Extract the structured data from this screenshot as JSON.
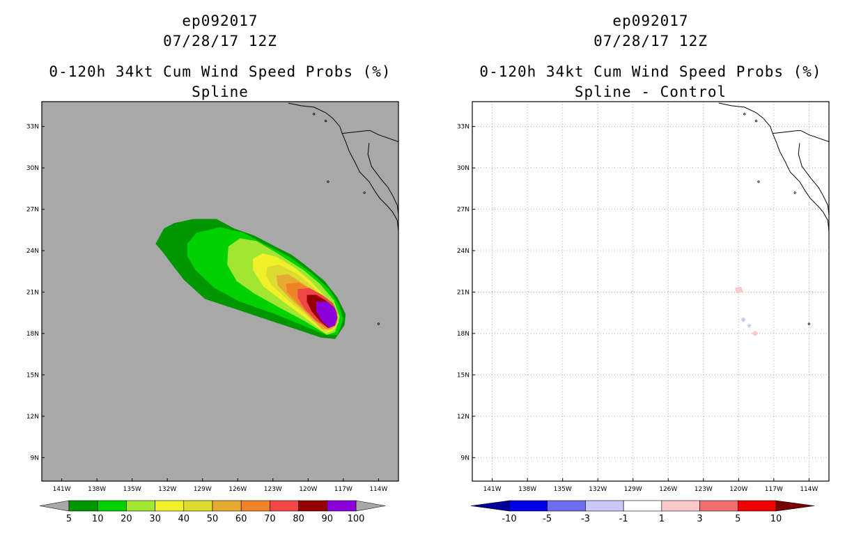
{
  "chart_data": [
    {
      "type": "heatmap",
      "panel": "left",
      "title_lines": [
        "ep092017",
        "07/28/17 12Z",
        "0-120h 34kt Cum Wind Speed Probs (%)",
        "Spline"
      ],
      "xlabel": "",
      "ylabel": "",
      "x_ticks": [
        "141W",
        "138W",
        "135W",
        "132W",
        "129W",
        "126W",
        "123W",
        "120W",
        "117W",
        "114W"
      ],
      "y_ticks": [
        "33N",
        "30N",
        "27N",
        "24N",
        "21N",
        "18N",
        "15N",
        "12N",
        "9N"
      ],
      "xlim": [
        -142.7,
        -112.3
      ],
      "ylim": [
        7.3,
        34.8
      ],
      "grid": false,
      "background": "#a8a8a8",
      "colorbar": {
        "labels": [
          "5",
          "10",
          "20",
          "30",
          "40",
          "50",
          "60",
          "70",
          "80",
          "90",
          "100"
        ],
        "colors": [
          "#009600",
          "#00d200",
          "#a0e632",
          "#f0f028",
          "#dcdc30",
          "#e6aa32",
          "#f08228",
          "#f04646",
          "#960000",
          "#8c00dc"
        ],
        "end_color": "#a8a8a8"
      },
      "contours": [
        {
          "level": 5,
          "color": "#009600",
          "polygon": [
            [
              -133.0,
              24.5
            ],
            [
              -132.3,
              25.6
            ],
            [
              -131.4,
              26.0
            ],
            [
              -129.8,
              26.3
            ],
            [
              -127.8,
              26.3
            ],
            [
              -126.3,
              25.6
            ],
            [
              -124.6,
              25.1
            ],
            [
              -122.8,
              24.3
            ],
            [
              -121.4,
              23.7
            ],
            [
              -120.3,
              23.0
            ],
            [
              -118.6,
              21.8
            ],
            [
              -117.5,
              20.6
            ],
            [
              -116.8,
              19.4
            ],
            [
              -116.9,
              18.6
            ],
            [
              -117.7,
              17.6
            ],
            [
              -118.9,
              17.7
            ],
            [
              -121.0,
              18.3
            ],
            [
              -123.5,
              19.0
            ],
            [
              -126.3,
              19.8
            ],
            [
              -128.8,
              20.5
            ],
            [
              -130.6,
              21.9
            ],
            [
              -131.6,
              23.0
            ],
            [
              -132.4,
              23.9
            ]
          ]
        },
        {
          "level": 10,
          "color": "#00d200",
          "polygon": [
            [
              -130.3,
              24.5
            ],
            [
              -129.5,
              25.3
            ],
            [
              -127.5,
              25.7
            ],
            [
              -125.5,
              25.3
            ],
            [
              -123.8,
              24.5
            ],
            [
              -121.5,
              23.5
            ],
            [
              -119.6,
              22.3
            ],
            [
              -118.2,
              21.2
            ],
            [
              -117.4,
              20.1
            ],
            [
              -117.0,
              19.0
            ],
            [
              -117.5,
              17.9
            ],
            [
              -118.5,
              17.9
            ],
            [
              -120.5,
              18.6
            ],
            [
              -122.8,
              19.4
            ],
            [
              -125.8,
              20.3
            ],
            [
              -128.0,
              21.3
            ],
            [
              -129.6,
              22.6
            ],
            [
              -130.3,
              23.6
            ]
          ]
        },
        {
          "level": 20,
          "color": "#a0e632",
          "polygon": [
            [
              -126.8,
              24.3
            ],
            [
              -125.8,
              24.9
            ],
            [
              -124.4,
              24.7
            ],
            [
              -122.6,
              23.8
            ],
            [
              -120.4,
              22.6
            ],
            [
              -119.0,
              21.6
            ],
            [
              -117.8,
              20.4
            ],
            [
              -117.3,
              19.2
            ],
            [
              -117.7,
              18.1
            ],
            [
              -118.4,
              17.9
            ],
            [
              -120.3,
              18.9
            ],
            [
              -122.5,
              19.9
            ],
            [
              -124.6,
              20.9
            ],
            [
              -126.1,
              21.8
            ],
            [
              -126.9,
              23.0
            ]
          ]
        },
        {
          "level": 30,
          "color": "#f0f028",
          "polygon": [
            [
              -124.7,
              23.4
            ],
            [
              -123.9,
              23.8
            ],
            [
              -122.8,
              23.6
            ],
            [
              -121.2,
              22.8
            ],
            [
              -119.8,
              21.8
            ],
            [
              -118.6,
              20.7
            ],
            [
              -117.7,
              19.6
            ],
            [
              -117.4,
              18.8
            ],
            [
              -117.9,
              18.2
            ],
            [
              -118.5,
              18.0
            ],
            [
              -120.2,
              19.1
            ],
            [
              -122.1,
              20.3
            ],
            [
              -123.8,
              21.4
            ],
            [
              -124.7,
              22.6
            ]
          ]
        },
        {
          "level": 40,
          "color": "#dcdc30",
          "polygon": [
            [
              -123.5,
              22.8
            ],
            [
              -122.5,
              23.0
            ],
            [
              -120.9,
              22.3
            ],
            [
              -119.6,
              21.4
            ],
            [
              -118.4,
              20.4
            ],
            [
              -117.6,
              19.5
            ],
            [
              -117.4,
              18.8
            ],
            [
              -117.9,
              18.3
            ],
            [
              -118.6,
              18.1
            ],
            [
              -120.1,
              19.3
            ],
            [
              -121.7,
              20.4
            ],
            [
              -123.1,
              21.5
            ],
            [
              -123.6,
              22.2
            ]
          ]
        },
        {
          "level": 50,
          "color": "#e6aa32",
          "polygon": [
            [
              -122.7,
              22.2
            ],
            [
              -121.7,
              22.3
            ],
            [
              -120.4,
              21.6
            ],
            [
              -119.1,
              20.8
            ],
            [
              -118.1,
              20.0
            ],
            [
              -117.5,
              19.3
            ],
            [
              -117.5,
              18.8
            ],
            [
              -118.0,
              18.3
            ],
            [
              -118.8,
              18.3
            ],
            [
              -120.2,
              19.5
            ],
            [
              -121.5,
              20.5
            ],
            [
              -122.6,
              21.5
            ]
          ]
        },
        {
          "level": 60,
          "color": "#f08228",
          "polygon": [
            [
              -121.9,
              21.6
            ],
            [
              -120.8,
              21.7
            ],
            [
              -119.6,
              21.1
            ],
            [
              -118.6,
              20.5
            ],
            [
              -117.7,
              19.8
            ],
            [
              -117.5,
              19.1
            ],
            [
              -117.7,
              18.5
            ],
            [
              -118.4,
              18.3
            ],
            [
              -119.6,
              19.1
            ],
            [
              -120.8,
              20.1
            ],
            [
              -121.8,
              21.0
            ]
          ]
        },
        {
          "level": 70,
          "color": "#f04646",
          "polygon": [
            [
              -120.9,
              21.2
            ],
            [
              -119.9,
              21.3
            ],
            [
              -118.8,
              20.8
            ],
            [
              -117.9,
              20.2
            ],
            [
              -117.5,
              19.5
            ],
            [
              -117.6,
              18.8
            ],
            [
              -118.3,
              18.4
            ],
            [
              -119.3,
              18.9
            ],
            [
              -120.3,
              19.8
            ],
            [
              -120.9,
              20.6
            ]
          ]
        },
        {
          "level": 80,
          "color": "#960000",
          "polygon": [
            [
              -120.1,
              20.8
            ],
            [
              -119.3,
              20.8
            ],
            [
              -118.5,
              20.4
            ],
            [
              -117.8,
              19.9
            ],
            [
              -117.5,
              19.2
            ],
            [
              -117.7,
              18.6
            ],
            [
              -118.3,
              18.4
            ],
            [
              -119.0,
              18.9
            ],
            [
              -119.7,
              19.6
            ],
            [
              -120.1,
              20.3
            ]
          ]
        },
        {
          "level": 90,
          "color": "#8c00dc",
          "polygon": [
            [
              -119.3,
              20.3
            ],
            [
              -118.4,
              20.3
            ],
            [
              -117.7,
              19.8
            ],
            [
              -117.5,
              19.1
            ],
            [
              -117.7,
              18.6
            ],
            [
              -118.2,
              18.4
            ],
            [
              -118.8,
              18.9
            ],
            [
              -119.3,
              19.6
            ]
          ]
        }
      ]
    },
    {
      "type": "heatmap",
      "panel": "right",
      "title_lines": [
        "ep092017",
        "07/28/17 12Z",
        "0-120h 34kt Cum Wind Speed Probs (%)",
        "Spline - Control"
      ],
      "xlabel": "",
      "ylabel": "",
      "x_ticks": [
        "141W",
        "138W",
        "135W",
        "132W",
        "129W",
        "126W",
        "123W",
        "120W",
        "117W",
        "114W"
      ],
      "y_ticks": [
        "33N",
        "30N",
        "27N",
        "24N",
        "21N",
        "18N",
        "15N",
        "12N",
        "9N"
      ],
      "xlim": [
        -142.7,
        -112.3
      ],
      "ylim": [
        7.3,
        34.8
      ],
      "grid": true,
      "background": "#ffffff",
      "colorbar": {
        "labels": [
          "-10",
          "-5",
          "-3",
          "-1",
          "1",
          "3",
          "5",
          "10"
        ],
        "colors": [
          "#0000e6",
          "#6e6ef0",
          "#c8c8fa",
          "#ffffff",
          "#fac8c8",
          "#f06e6e",
          "#f00000"
        ],
        "left_end_color": "#000096",
        "right_end_color": "#780000"
      },
      "contours": [
        {
          "level": 1,
          "color": "#fac8c8",
          "polygon": [
            [
              -120.3,
              21.3
            ],
            [
              -119.8,
              21.4
            ],
            [
              -119.6,
              21.0
            ],
            [
              -120.2,
              20.9
            ]
          ]
        },
        {
          "level": -1,
          "color": "#c8c8fa",
          "polygon": [
            [
              -119.6,
              19.2
            ],
            [
              -119.4,
              19.0
            ],
            [
              -119.6,
              18.8
            ],
            [
              -119.8,
              19.0
            ]
          ]
        },
        {
          "level": -1,
          "color": "#c8c8fa",
          "polygon": [
            [
              -119.1,
              18.7
            ],
            [
              -118.9,
              18.6
            ],
            [
              -119.1,
              18.4
            ],
            [
              -119.3,
              18.6
            ]
          ]
        },
        {
          "level": 1,
          "color": "#fac8c8",
          "polygon": [
            [
              -118.6,
              18.2
            ],
            [
              -118.3,
              18.0
            ],
            [
              -118.6,
              17.8
            ],
            [
              -118.9,
              18.0
            ]
          ]
        }
      ]
    }
  ]
}
